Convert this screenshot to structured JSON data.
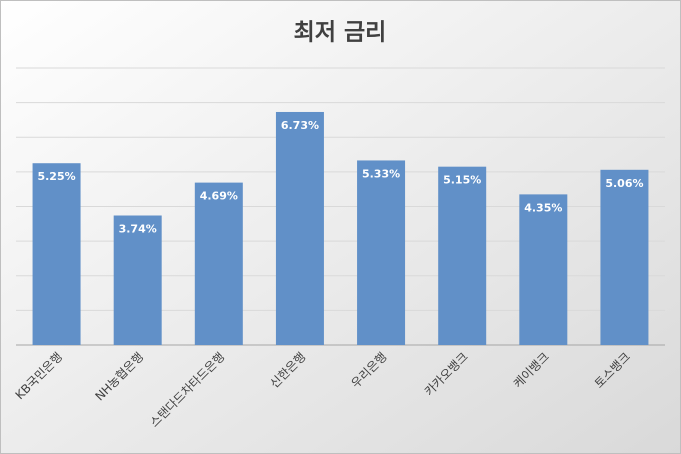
{
  "chart_data": {
    "type": "bar",
    "title": "최저 금리",
    "categories": [
      "KB국민은행",
      "NH농협은행",
      "스탠다드차타드은행",
      "신한은행",
      "우리은행",
      "카카오뱅크",
      "케이뱅크",
      "토스뱅크"
    ],
    "values": [
      5.25,
      3.74,
      4.69,
      6.73,
      5.33,
      5.15,
      4.35,
      5.06
    ],
    "value_labels": [
      "5.25%",
      "3.74%",
      "4.69%",
      "6.73%",
      "5.33%",
      "5.15%",
      "4.35%",
      "5.06%"
    ],
    "color": "#6190c8",
    "ylim": [
      0,
      8
    ],
    "yticks": [
      0,
      1,
      2,
      3,
      4,
      5,
      6,
      7,
      8
    ],
    "grid": true
  }
}
